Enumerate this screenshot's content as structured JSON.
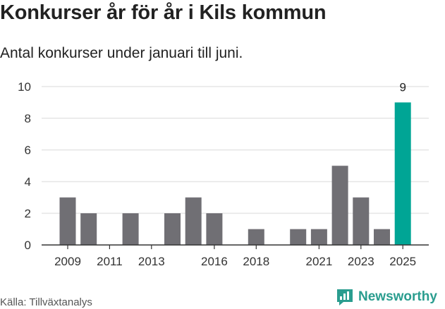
{
  "title": "Konkurser år för år i Kils kommun",
  "subtitle": "Antal konkurser under januari till juni.",
  "source": "Källa: Tillväxtanalys",
  "brand": {
    "name": "Newsworthy",
    "icon": "newsworthy-logo-icon",
    "color": "#2a9d8f"
  },
  "colors": {
    "bar": "#706f74",
    "highlight": "#00a595",
    "grid": "#d9d9d9",
    "axis": "#333333"
  },
  "chart_data": {
    "type": "bar",
    "categories": [
      2009,
      2010,
      2011,
      2012,
      2013,
      2014,
      2015,
      2016,
      2017,
      2018,
      2019,
      2020,
      2021,
      2022,
      2023,
      2024,
      2025
    ],
    "values": [
      3,
      2,
      0,
      2,
      0,
      2,
      3,
      2,
      0,
      1,
      0,
      1,
      1,
      5,
      3,
      1,
      9
    ],
    "x_tick_labels": [
      "2009",
      "2011",
      "2013",
      "2016",
      "2018",
      "2021",
      "2023",
      "2025"
    ],
    "y_ticks": [
      0,
      2,
      4,
      6,
      8,
      10
    ],
    "ylim": [
      0,
      10
    ],
    "highlight_category": 2025,
    "annotations": [
      {
        "category": 2025,
        "label": "9"
      }
    ],
    "grid": true,
    "legend": "none"
  }
}
